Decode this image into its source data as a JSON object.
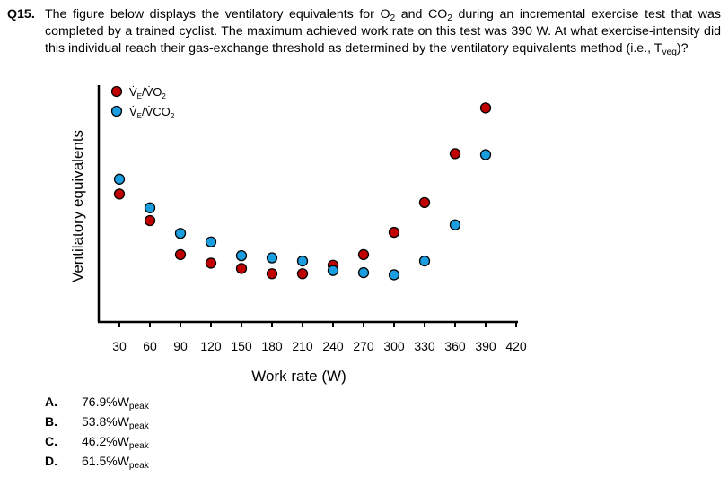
{
  "question": {
    "number": "Q15.",
    "text_1": "The figure below displays the ventilatory equivalents for O",
    "sub_1": "2",
    "text_2": " and CO",
    "sub_2": "2",
    "text_3": " during an incremental exercise test that was completed by a trained cyclist. The maximum achieved work rate on this test was 390 W. At what exercise-intensity did this individual reach their gas-exchange threshold as determined by the ventilatory equivalents method (i.e., T",
    "sub_3": "veq",
    "text_4": ")?"
  },
  "chart_data": {
    "type": "scatter",
    "xlabel": "Work rate (W)",
    "ylabel": "Ventilatory equivalents",
    "x_ticks": [
      30,
      60,
      90,
      120,
      150,
      180,
      210,
      240,
      270,
      300,
      330,
      360,
      390,
      420
    ],
    "xlim": [
      15,
      420
    ],
    "ylim": [
      0,
      100
    ],
    "y_tick_labels": false,
    "legend_position": "top-left",
    "series": [
      {
        "name": "V̇E/V̇O2",
        "name_main": "V̇",
        "name_sub": "E",
        "name_rest": "/V̇O",
        "name_sub2": "2",
        "color": "#c00000",
        "x": [
          30,
          60,
          90,
          120,
          150,
          180,
          210,
          240,
          270,
          300,
          330,
          360,
          390
        ],
        "y": [
          53,
          40.5,
          24.5,
          20.5,
          18,
          15.5,
          15.5,
          19.5,
          24.5,
          35,
          49,
          72,
          93.5
        ]
      },
      {
        "name": "V̇E/V̇CO2",
        "name_main": "V̇",
        "name_sub": "E",
        "name_rest": "/V̇CO",
        "name_sub2": "2",
        "color": "#1a9ee0",
        "x": [
          30,
          60,
          90,
          120,
          150,
          180,
          210,
          240,
          270,
          300,
          330,
          360,
          390
        ],
        "y": [
          60,
          46.5,
          34.5,
          30.5,
          24,
          23,
          21.5,
          17,
          16,
          15,
          21.5,
          38.5,
          71.5
        ]
      }
    ]
  },
  "answers": [
    {
      "letter": "A.",
      "value": "76.9%W",
      "sub": "peak"
    },
    {
      "letter": "B.",
      "value": "53.8%W",
      "sub": "peak"
    },
    {
      "letter": "C.",
      "value": "46.2%W",
      "sub": "peak"
    },
    {
      "letter": "D.",
      "value": "61.5%W",
      "sub": "peak"
    }
  ]
}
